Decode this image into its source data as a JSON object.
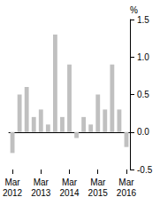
{
  "chart_data": {
    "type": "bar",
    "y_label": "%",
    "categories": [
      "Mar 2012",
      null,
      null,
      null,
      "Mar 2013",
      null,
      null,
      null,
      "Mar 2014",
      null,
      null,
      null,
      "Mar 2015",
      null,
      null,
      null,
      "Mar 2016"
    ],
    "values": [
      -0.28,
      0.5,
      0.6,
      0.2,
      0.3,
      0.1,
      1.3,
      0.2,
      0.9,
      -0.08,
      0.2,
      0.1,
      0.5,
      0.3,
      0.9,
      0.3,
      -0.2
    ],
    "color": "#c0c0c0",
    "ylim": [
      -0.5,
      1.5
    ],
    "yticks": [
      -0.5,
      {
        "value": 0,
        "label": "0.0"
      },
      0.5,
      {
        "value": 1,
        "label": "1.0"
      },
      1.5
    ],
    "grid": false
  }
}
